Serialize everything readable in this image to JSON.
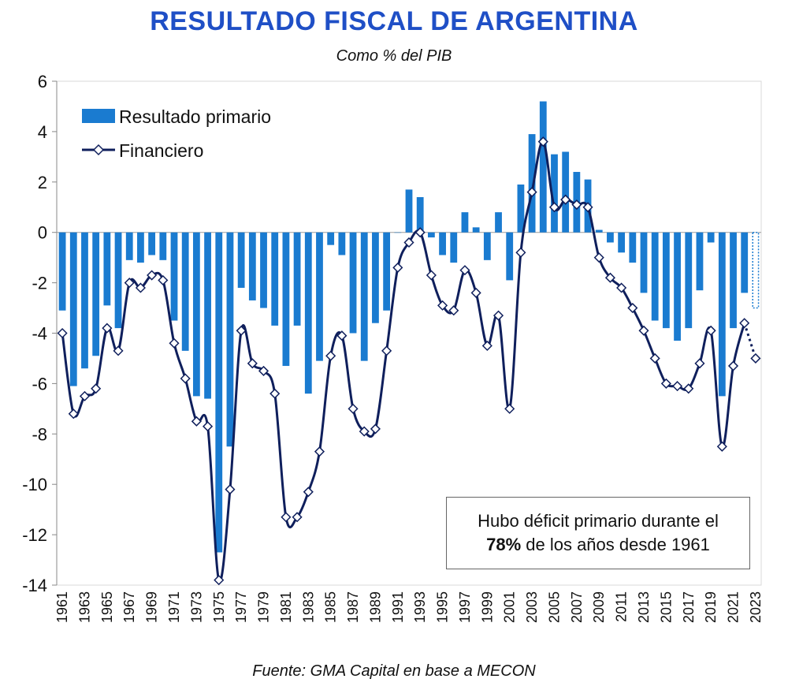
{
  "chart_data": {
    "type": "bar",
    "title": "RESULTADO FISCAL DE ARGENTINA",
    "subtitle": "Como % del PIB",
    "source": "Fuente: GMA Capital en base a MECON",
    "annotation": {
      "line1": "Hubo déficit primario durante el",
      "bold": "78%",
      "line2_rest": " de los años desde 1961"
    },
    "ylim": [
      -14,
      6
    ],
    "yticks": [
      6,
      4,
      2,
      0,
      -2,
      -4,
      -6,
      -8,
      -10,
      -12,
      -14
    ],
    "x": [
      1961,
      1962,
      1963,
      1964,
      1965,
      1966,
      1967,
      1968,
      1969,
      1970,
      1971,
      1972,
      1973,
      1974,
      1975,
      1976,
      1977,
      1978,
      1979,
      1980,
      1981,
      1982,
      1983,
      1984,
      1985,
      1986,
      1987,
      1988,
      1989,
      1990,
      1991,
      1992,
      1993,
      1994,
      1995,
      1996,
      1997,
      1998,
      1999,
      2000,
      2001,
      2002,
      2003,
      2004,
      2005,
      2006,
      2007,
      2008,
      2009,
      2010,
      2011,
      2012,
      2013,
      2014,
      2015,
      2016,
      2017,
      2018,
      2019,
      2020,
      2021,
      2022,
      2023
    ],
    "xtick_labels": [
      "1961",
      "1963",
      "1965",
      "1967",
      "1969",
      "1971",
      "1973",
      "1975",
      "1977",
      "1979",
      "1981",
      "1983",
      "1985",
      "1987",
      "1989",
      "1991",
      "1993",
      "1995",
      "1997",
      "1999",
      "2001",
      "2003",
      "2005",
      "2007",
      "2009",
      "2011",
      "2013",
      "2015",
      "2017",
      "2019",
      "2021",
      "2023"
    ],
    "series": [
      {
        "name": "Resultado primario",
        "kind": "bar",
        "color": "#1a7bd0",
        "values": [
          -3.1,
          -6.1,
          -5.4,
          -4.9,
          -2.9,
          -3.8,
          -1.1,
          -1.2,
          -0.9,
          -1.1,
          -3.5,
          -4.7,
          -6.5,
          -6.6,
          -12.7,
          -8.5,
          -2.2,
          -2.7,
          -3.0,
          -3.7,
          -5.3,
          -3.7,
          -6.4,
          -5.1,
          -0.5,
          -0.9,
          -4.0,
          -5.1,
          -3.6,
          -3.1,
          0.0,
          1.7,
          1.4,
          -0.2,
          -0.9,
          -1.2,
          0.8,
          0.2,
          -1.1,
          0.8,
          -1.9,
          1.9,
          3.9,
          5.2,
          3.1,
          3.2,
          2.4,
          2.1,
          0.1,
          -0.4,
          -0.8,
          -1.2,
          -2.4,
          -3.5,
          -3.8,
          -4.3,
          -3.8,
          -2.3,
          -0.4,
          -6.5,
          -3.8,
          -2.4,
          -3.0
        ],
        "projected_last": true
      },
      {
        "name": "Financiero",
        "kind": "line",
        "color": "#0f1f5c",
        "values": [
          -4.0,
          -7.2,
          -6.5,
          -6.2,
          -3.8,
          -4.7,
          -2.0,
          -2.2,
          -1.7,
          -1.9,
          -4.4,
          -5.8,
          -7.5,
          -7.7,
          -13.8,
          -10.2,
          -3.9,
          -5.2,
          -5.5,
          -6.4,
          -11.3,
          -11.3,
          -10.3,
          -8.7,
          -4.9,
          -4.1,
          -7.0,
          -7.9,
          -7.8,
          -4.7,
          -1.4,
          -0.4,
          0.0,
          -1.7,
          -2.9,
          -3.1,
          -1.5,
          -2.4,
          -4.5,
          -3.3,
          -7.0,
          -0.8,
          1.6,
          3.6,
          1.0,
          1.3,
          1.1,
          1.0,
          -1.0,
          -1.8,
          -2.2,
          -3.0,
          -3.9,
          -5.0,
          -6.0,
          -6.1,
          -6.2,
          -5.2,
          -3.9,
          -8.5,
          -5.3,
          -3.6,
          -5.0
        ],
        "projected_last": true
      }
    ]
  }
}
